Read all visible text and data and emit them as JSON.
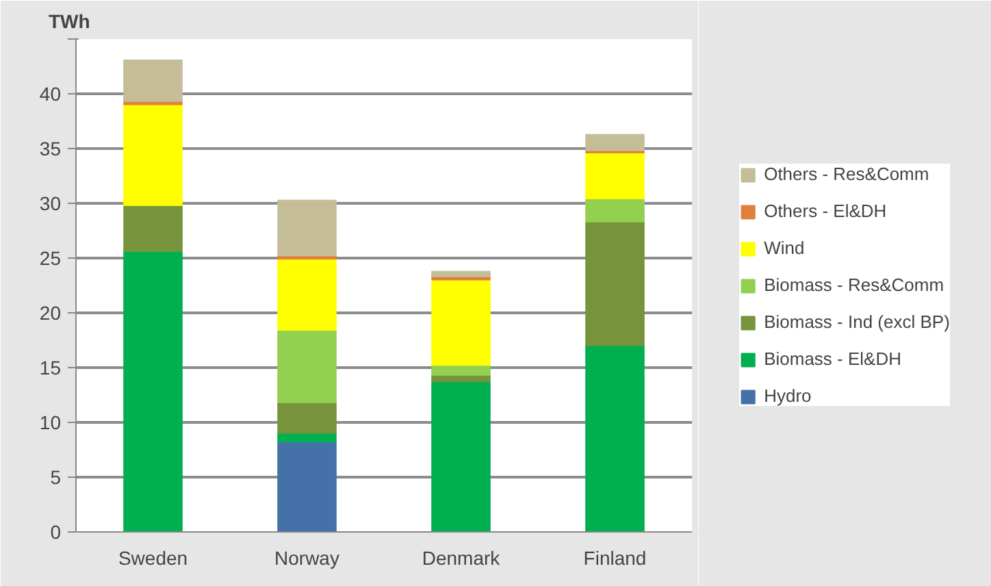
{
  "chart_data": {
    "type": "bar",
    "stacked": true,
    "ylabel": "TWh",
    "categories": [
      "Sweden",
      "Norway",
      "Denmark",
      "Finland"
    ],
    "series": [
      {
        "name": "Hydro",
        "color": "#4472a8",
        "values": [
          0,
          8.2,
          0,
          0
        ]
      },
      {
        "name": "Biomass - El&DH",
        "color": "#00b050",
        "values": [
          25.6,
          0.8,
          13.7,
          17.0
        ]
      },
      {
        "name": "Biomass - Ind (excl BP)",
        "color": "#77933c",
        "values": [
          4.2,
          2.8,
          0.6,
          11.3
        ]
      },
      {
        "name": "Biomass - Res&Comm",
        "color": "#92d050",
        "values": [
          0,
          6.6,
          0.9,
          2.1
        ]
      },
      {
        "name": "Wind",
        "color": "#ffff00",
        "values": [
          9.2,
          6.5,
          7.8,
          4.2
        ]
      },
      {
        "name": "Others - El&DH",
        "color": "#e0803c",
        "values": [
          0.3,
          0.3,
          0.3,
          0.2
        ]
      },
      {
        "name": "Others - Res&Comm",
        "color": "#c4bd97",
        "values": [
          3.8,
          5.1,
          0.5,
          1.5
        ]
      }
    ],
    "ylim": [
      0,
      45
    ],
    "yticks": [
      0,
      5,
      10,
      15,
      20,
      25,
      30,
      35,
      40,
      {
        "value": 45,
        "label": null
      }
    ],
    "grid": "y",
    "legend": "right"
  }
}
